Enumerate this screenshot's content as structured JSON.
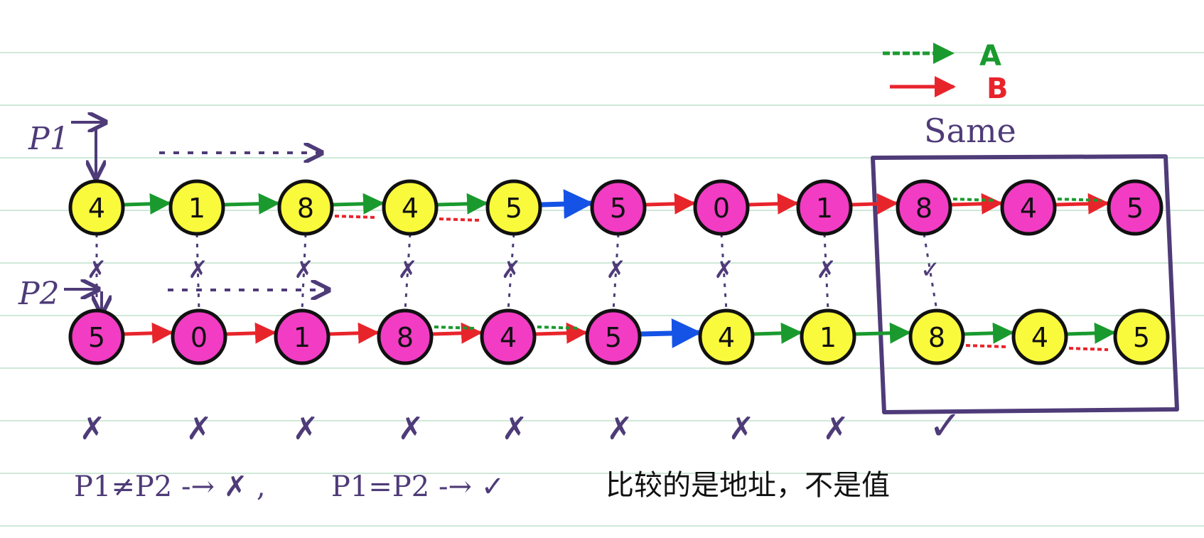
{
  "legend": [
    {
      "label": "A",
      "color": "#1a9a2e"
    },
    {
      "label": "B",
      "color": "#e8242b"
    }
  ],
  "same_label": "Same",
  "pointers": {
    "p1": "P1",
    "p2": "P2"
  },
  "row1": [
    {
      "value": "4",
      "fill": "yellow"
    },
    {
      "value": "1",
      "fill": "yellow"
    },
    {
      "value": "8",
      "fill": "yellow"
    },
    {
      "value": "4",
      "fill": "yellow"
    },
    {
      "value": "5",
      "fill": "yellow"
    },
    {
      "value": "5",
      "fill": "magenta"
    },
    {
      "value": "0",
      "fill": "magenta"
    },
    {
      "value": "1",
      "fill": "magenta"
    },
    {
      "value": "8",
      "fill": "magenta"
    },
    {
      "value": "4",
      "fill": "magenta"
    },
    {
      "value": "5",
      "fill": "magenta"
    }
  ],
  "row2": [
    {
      "value": "5",
      "fill": "magenta"
    },
    {
      "value": "0",
      "fill": "magenta"
    },
    {
      "value": "1",
      "fill": "magenta"
    },
    {
      "value": "8",
      "fill": "magenta"
    },
    {
      "value": "4",
      "fill": "magenta"
    },
    {
      "value": "5",
      "fill": "magenta"
    },
    {
      "value": "4",
      "fill": "yellow"
    },
    {
      "value": "1",
      "fill": "yellow"
    },
    {
      "value": "8",
      "fill": "yellow"
    },
    {
      "value": "4",
      "fill": "yellow"
    },
    {
      "value": "5",
      "fill": "yellow"
    }
  ],
  "comparisons": [
    "✗",
    "✗",
    "✗",
    "✗",
    "✗",
    "✗",
    "✗",
    "✗",
    "✓"
  ],
  "bottom_results": [
    "✗",
    "✗",
    "✗",
    "✗",
    "✗",
    "✗",
    "✗",
    "✗",
    "✓"
  ],
  "rule_neq": "P1≠P2 -→ ✗ ,",
  "rule_eq": "P1=P2 -→ ✓",
  "note": "比较的是地址，不是值",
  "colors": {
    "green": "#1a9a2e",
    "red": "#e8242b",
    "blue": "#1553e6",
    "purple": "#4e3b78",
    "yellow": "#fafa3c",
    "magenta": "#f23cc4",
    "rule_line": "#cfe9d8"
  }
}
